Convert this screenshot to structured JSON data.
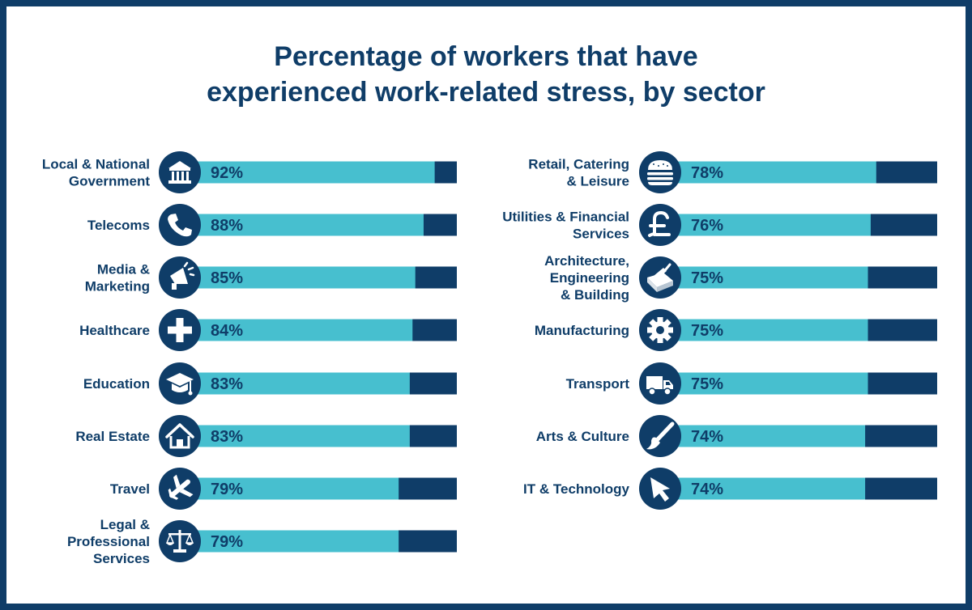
{
  "title_lines": [
    "Percentage of workers that have",
    "experienced work-related stress, by sector"
  ],
  "colors": {
    "frame": "#0f3d68",
    "navy": "#0f3d68",
    "bar_fill": "#47bfcf",
    "bar_remainder": "#0f3d68",
    "icon_glyph": "#ffffff"
  },
  "chart_data": {
    "type": "bar",
    "orientation": "horizontal",
    "title": "Percentage of workers that have experienced work-related stress, by sector",
    "xlim": [
      0,
      100
    ],
    "unit": "%",
    "grid": false,
    "legend": "none",
    "columns": [
      {
        "items": [
          {
            "label": [
              "Local & National",
              "Government"
            ],
            "value": 92,
            "value_label": "92%",
            "icon": "government-building-icon"
          },
          {
            "label": [
              "Telecoms"
            ],
            "value": 88,
            "value_label": "88%",
            "icon": "telephone-icon"
          },
          {
            "label": [
              "Media &",
              "Marketing"
            ],
            "value": 85,
            "value_label": "85%",
            "icon": "megaphone-icon"
          },
          {
            "label": [
              "Healthcare"
            ],
            "value": 84,
            "value_label": "84%",
            "icon": "medical-cross-icon"
          },
          {
            "label": [
              "Education"
            ],
            "value": 83,
            "value_label": "83%",
            "icon": "graduation-cap-icon"
          },
          {
            "label": [
              "Real Estate"
            ],
            "value": 83,
            "value_label": "83%",
            "icon": "house-icon"
          },
          {
            "label": [
              "Travel"
            ],
            "value": 79,
            "value_label": "79%",
            "icon": "airplane-icon"
          },
          {
            "label": [
              "Legal &",
              "Professional",
              "Services"
            ],
            "value": 79,
            "value_label": "79%",
            "icon": "scales-of-justice-icon"
          }
        ]
      },
      {
        "items": [
          {
            "label": [
              "Retail, Catering",
              "& Leisure"
            ],
            "value": 78,
            "value_label": "78%",
            "icon": "burger-icon"
          },
          {
            "label": [
              "Utilities & Financial",
              "Services"
            ],
            "value": 76,
            "value_label": "76%",
            "icon": "pound-sign-icon"
          },
          {
            "label": [
              "Architecture,",
              "Engineering",
              "& Building"
            ],
            "value": 75,
            "value_label": "75%",
            "icon": "trowel-brick-icon"
          },
          {
            "label": [
              "Manufacturing"
            ],
            "value": 75,
            "value_label": "75%",
            "icon": "gear-icon"
          },
          {
            "label": [
              "Transport"
            ],
            "value": 75,
            "value_label": "75%",
            "icon": "truck-icon"
          },
          {
            "label": [
              "Arts & Culture"
            ],
            "value": 74,
            "value_label": "74%",
            "icon": "paintbrush-icon"
          },
          {
            "label": [
              "IT & Technology"
            ],
            "value": 74,
            "value_label": "74%",
            "icon": "cursor-arrow-icon"
          }
        ]
      }
    ]
  }
}
